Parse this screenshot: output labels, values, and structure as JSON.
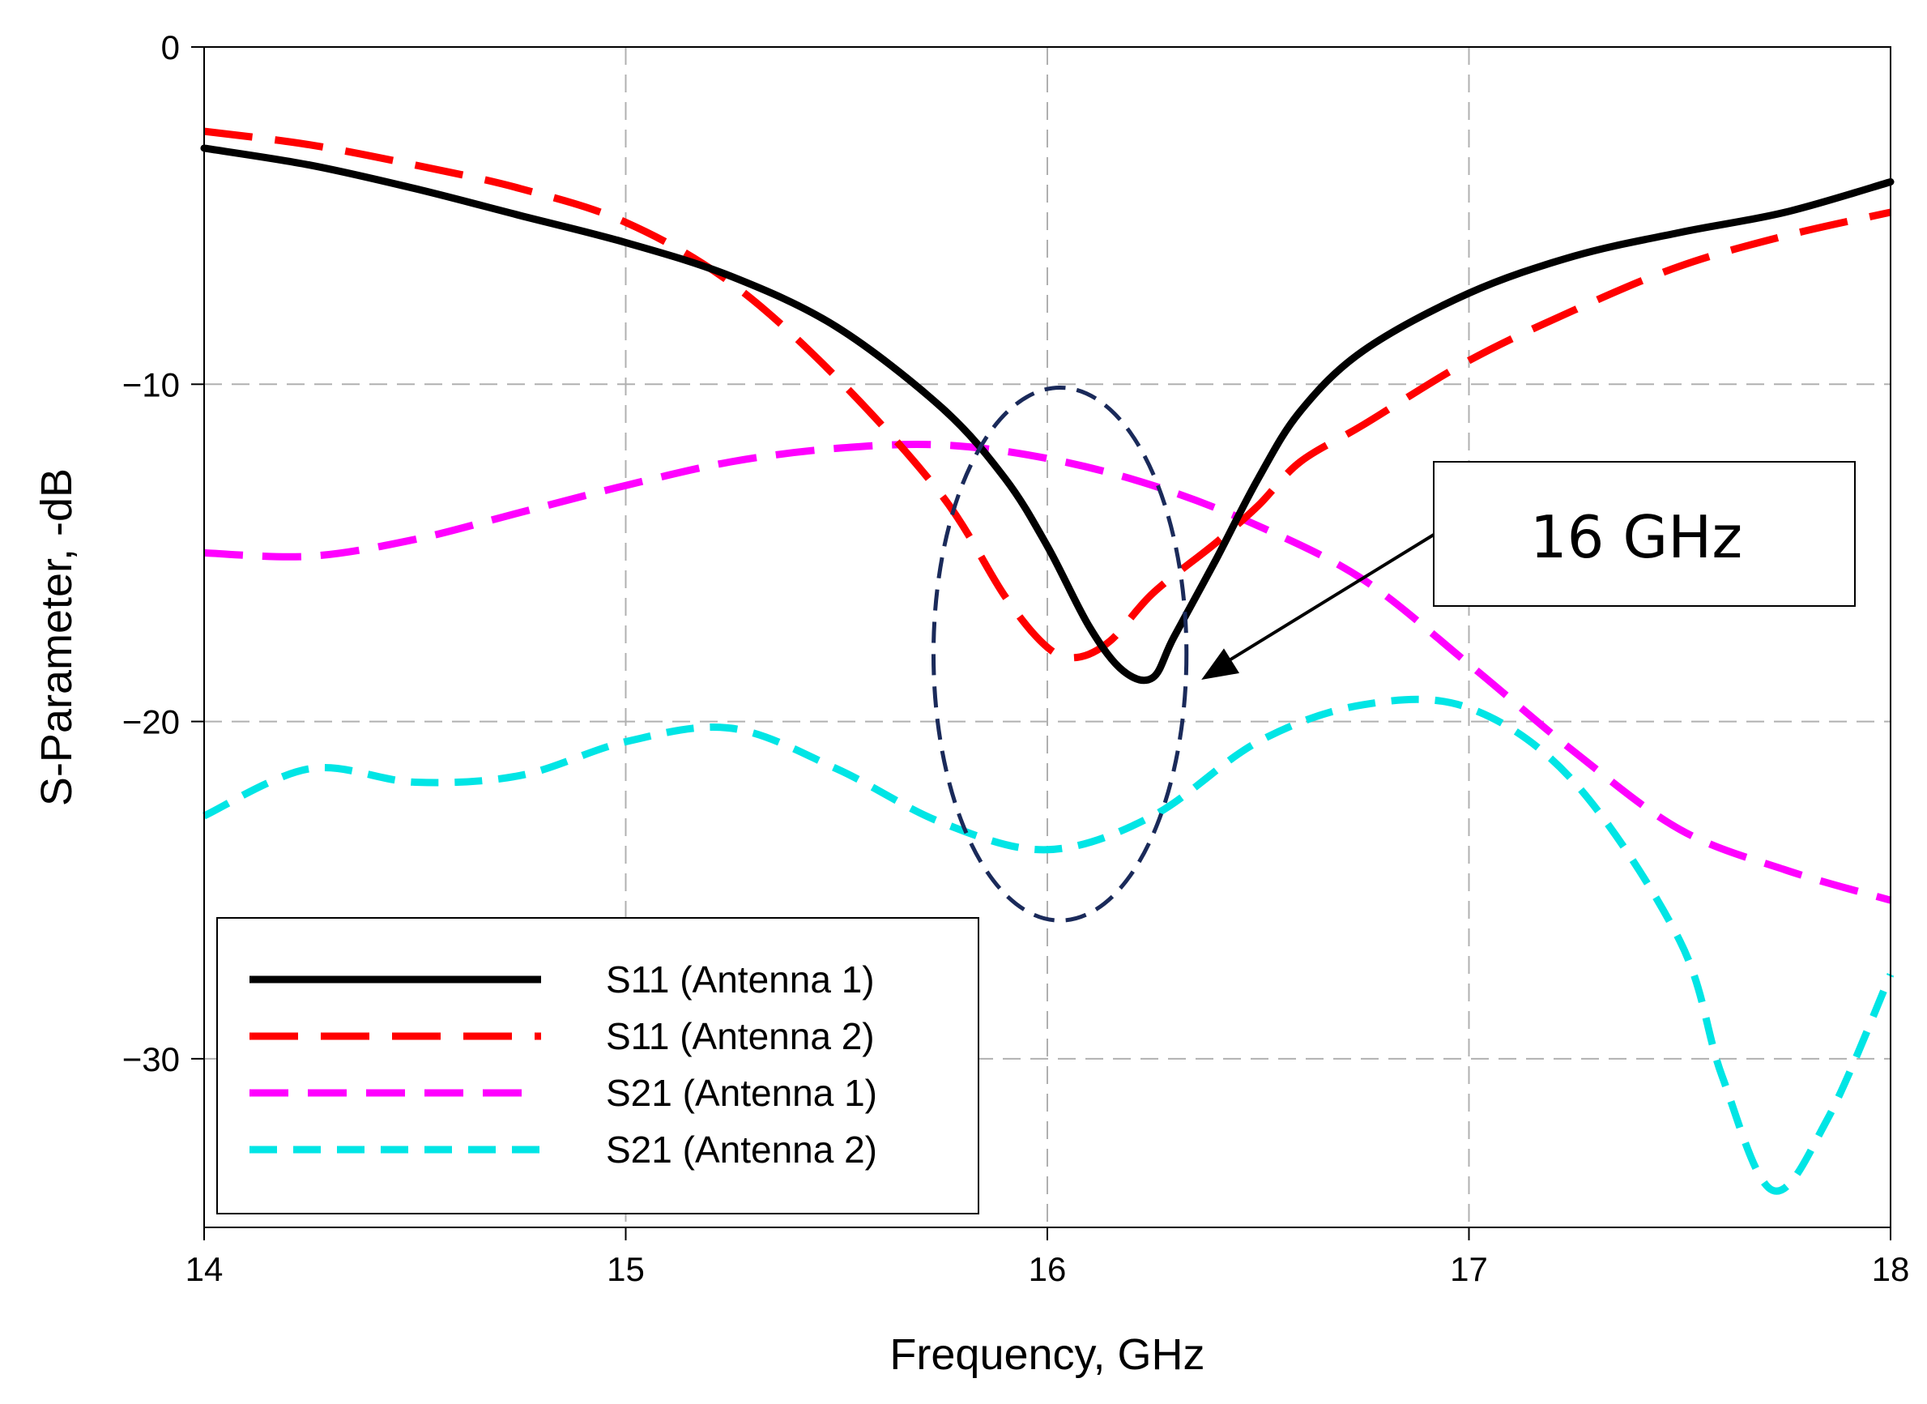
{
  "chart_data": {
    "type": "line",
    "title": "",
    "xlabel": "Frequency, GHz",
    "ylabel": "S-Parameter, -dB",
    "xlim": [
      14,
      18
    ],
    "ylim": [
      -35,
      0
    ],
    "xticks": [
      14,
      15,
      16,
      17,
      18
    ],
    "xtick_labels": [
      "14",
      "15",
      "16",
      "17",
      "18"
    ],
    "yticks": [
      0,
      -10,
      -20,
      -30
    ],
    "ytick_labels": [
      "0",
      "−10",
      "−20",
      "−30"
    ],
    "grid": true,
    "legend_position": "bottom-left",
    "series": [
      {
        "name": "S11 (Antenna 1)",
        "color": "#000000",
        "style": "solid",
        "x": [
          14.0,
          14.25,
          14.5,
          14.75,
          15.0,
          15.25,
          15.5,
          15.75,
          15.9,
          16.0,
          16.1,
          16.18,
          16.25,
          16.3,
          16.4,
          16.5,
          16.6,
          16.75,
          17.0,
          17.25,
          17.5,
          17.75,
          18.0
        ],
        "y": [
          -3.0,
          -3.5,
          -4.2,
          -5.0,
          -5.8,
          -6.8,
          -8.3,
          -10.7,
          -12.8,
          -14.8,
          -17.2,
          -18.5,
          -18.7,
          -17.5,
          -15.2,
          -12.8,
          -10.8,
          -9.0,
          -7.3,
          -6.2,
          -5.5,
          -4.9,
          -4.0
        ]
      },
      {
        "name": "S11 (Antenna 2)",
        "color": "#ff0000",
        "style": "dash",
        "x": [
          14.0,
          14.25,
          14.5,
          14.75,
          15.0,
          15.25,
          15.5,
          15.75,
          15.9,
          16.0,
          16.07,
          16.15,
          16.25,
          16.4,
          16.5,
          16.6,
          16.75,
          17.0,
          17.25,
          17.5,
          17.75,
          18.0
        ],
        "y": [
          -2.5,
          -2.9,
          -3.5,
          -4.2,
          -5.2,
          -7.0,
          -9.8,
          -13.3,
          -16.3,
          -17.8,
          -18.1,
          -17.6,
          -16.2,
          -14.7,
          -13.6,
          -12.3,
          -11.2,
          -9.3,
          -7.8,
          -6.5,
          -5.6,
          -4.9
        ]
      },
      {
        "name": "S21 (Antenna 1)",
        "color": "#ff00ff",
        "style": "dash",
        "x": [
          14.0,
          14.25,
          14.5,
          14.75,
          15.0,
          15.25,
          15.5,
          15.75,
          16.0,
          16.25,
          16.5,
          16.75,
          17.0,
          17.25,
          17.5,
          17.75,
          18.0
        ],
        "y": [
          -15.0,
          -15.1,
          -14.6,
          -13.8,
          -13.0,
          -12.3,
          -11.9,
          -11.8,
          -12.2,
          -13.0,
          -14.2,
          -15.8,
          -18.3,
          -20.9,
          -23.2,
          -24.4,
          -25.3
        ]
      },
      {
        "name": "S21 (Antenna 2)",
        "color": "#00e5e5",
        "style": "dash",
        "x": [
          14.0,
          14.25,
          14.5,
          14.75,
          15.0,
          15.25,
          15.5,
          15.75,
          16.0,
          16.25,
          16.5,
          16.75,
          17.0,
          17.25,
          17.5,
          17.6,
          17.72,
          17.85,
          18.0
        ],
        "y": [
          -22.8,
          -21.4,
          -21.8,
          -21.6,
          -20.6,
          -20.2,
          -21.4,
          -23.0,
          -23.8,
          -22.8,
          -20.6,
          -19.5,
          -19.6,
          -21.8,
          -26.5,
          -30.5,
          -33.9,
          -31.8,
          -27.5
        ]
      }
    ],
    "annotations": [
      {
        "text": "16 GHz",
        "type": "callout-arrow",
        "points_to": {
          "x": 16.35,
          "y": -19.0
        }
      },
      {
        "type": "dashed-ellipse",
        "center": {
          "x": 16.03,
          "y": -18.0
        },
        "half_width_ghz": 0.3,
        "half_height_db": 7.9,
        "color": "#1a2a5a"
      }
    ]
  }
}
